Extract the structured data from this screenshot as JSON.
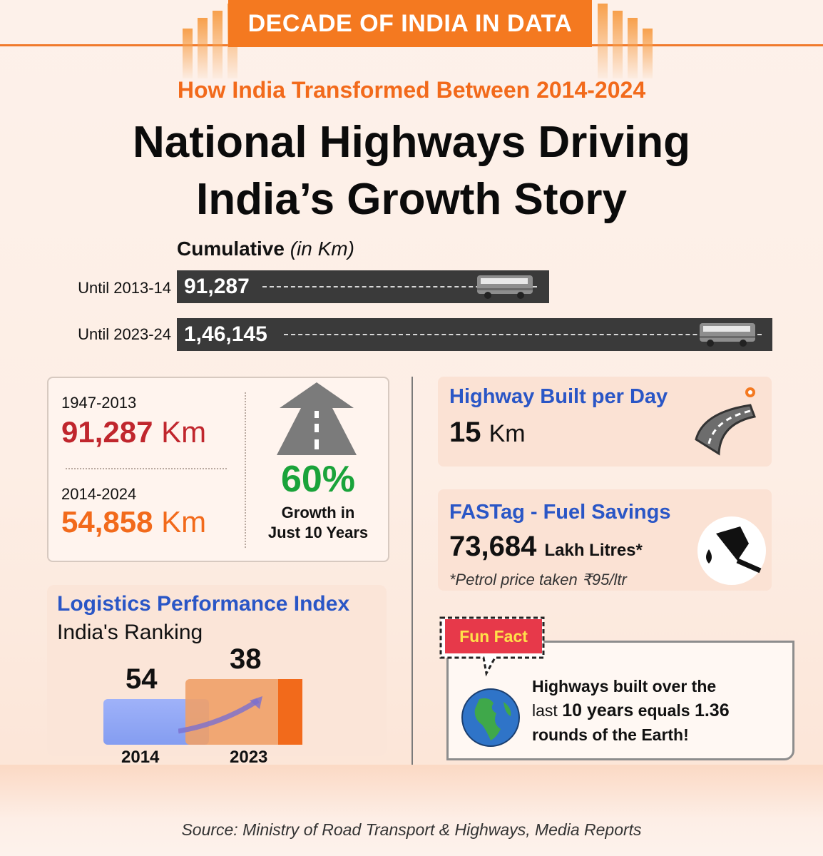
{
  "header": {
    "banner": "DECADE OF INDIA IN DATA"
  },
  "subtitle": "How India Transformed Between 2014-2024",
  "title_line1": "National Highways Driving",
  "title_line2": "India’s Growth Story",
  "cumulative": {
    "label": "Cumulative",
    "unit_label": "(in Km)",
    "rows": [
      {
        "label": "Until 2013-14",
        "value": "91,287"
      },
      {
        "label": "Until 2023-24",
        "value": "1,46,145"
      }
    ]
  },
  "stats": {
    "period1": "1947-2013",
    "value1": "91,287",
    "period2": "2014-2024",
    "value2": "54,858",
    "unit": "Km",
    "growth_pct": "60%",
    "growth_line1": "Growth in",
    "growth_line2": "Just 10 Years"
  },
  "lpi": {
    "title": "Logistics Performance Index",
    "subtitle": "India's Ranking",
    "bars": [
      {
        "year": "2014",
        "rank": "54"
      },
      {
        "year": "2023",
        "rank": "38"
      }
    ]
  },
  "per_day": {
    "title": "Highway Built per Day",
    "value": "15",
    "unit": "Km"
  },
  "fastag": {
    "title": "FASTag - Fuel Savings",
    "value": "73,684",
    "unit": "Lakh Litres*",
    "note": "*Petrol price taken ₹95/ltr"
  },
  "fun_fact": {
    "tag": "Fun Fact",
    "line1": "Highways built over the",
    "line2_pre": "last ",
    "line2_bold": "10 years",
    "line2_mid": " equals ",
    "line2_num": "1.36",
    "line3": "rounds of the Earth!"
  },
  "source": "Source: Ministry of Road Transport & Highways, Media Reports",
  "colors": {
    "orange": "#f47920",
    "blue": "#2a56c6",
    "red": "#c0262d",
    "green": "#1aa33a"
  }
}
